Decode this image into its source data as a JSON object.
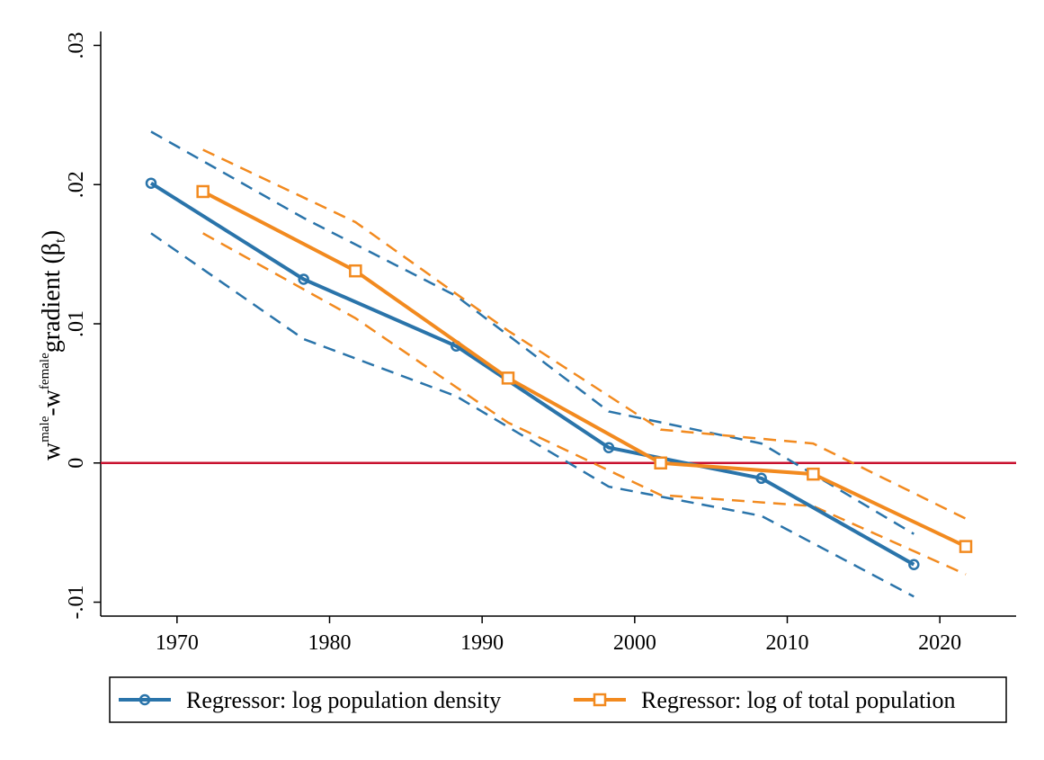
{
  "chart_data": {
    "type": "line",
    "title": "",
    "xlabel": "",
    "ylabel": {
      "base1": "w",
      "sup1": "male",
      "dash": "-w",
      "sup2": "female",
      "main": "gradient (β",
      "sub": "t",
      "close": ")"
    },
    "xlim": [
      1965,
      2025
    ],
    "ylim": [
      -0.011,
      0.031
    ],
    "x_ticks": [
      1970,
      1980,
      1990,
      2000,
      2010,
      2020
    ],
    "x_tick_labels": [
      "1970",
      "1980",
      "1990",
      "2000",
      "2010",
      "2020"
    ],
    "y_ticks": [
      -0.01,
      0,
      0.01,
      0.02,
      0.03
    ],
    "y_tick_labels": [
      "-.01",
      "0",
      ".01",
      ".02",
      ".03"
    ],
    "grid": false,
    "reference_line": {
      "y": 0,
      "color": "#c8102e"
    },
    "legend_position": "bottom",
    "series": [
      {
        "name": "Regressor: log population density",
        "color": "#2a74aa",
        "marker": "circle",
        "x": [
          1968.3,
          1978.3,
          1988.3,
          1998.3,
          2008.3,
          2018.3
        ],
        "values": [
          0.0201,
          0.0132,
          0.0084,
          0.0011,
          -0.0011,
          -0.0073
        ],
        "ci_upper": [
          0.0238,
          0.0176,
          0.012,
          0.0037,
          0.0014,
          -0.0051
        ],
        "ci_lower": [
          0.0165,
          0.0089,
          0.0048,
          -0.0017,
          -0.0038,
          -0.0096
        ]
      },
      {
        "name": "Regressor: log of total population",
        "color": "#f28a1f",
        "marker": "square",
        "x": [
          1971.7,
          1981.7,
          1991.7,
          2001.7,
          2011.7,
          2021.7
        ],
        "values": [
          0.0195,
          0.0138,
          0.0061,
          0.0,
          -0.0008,
          -0.006
        ],
        "ci_upper": [
          0.0225,
          0.0173,
          0.0095,
          0.0024,
          0.0014,
          -0.004
        ],
        "ci_lower": [
          0.0165,
          0.0104,
          0.0029,
          -0.0023,
          -0.0031,
          -0.008
        ]
      }
    ]
  }
}
